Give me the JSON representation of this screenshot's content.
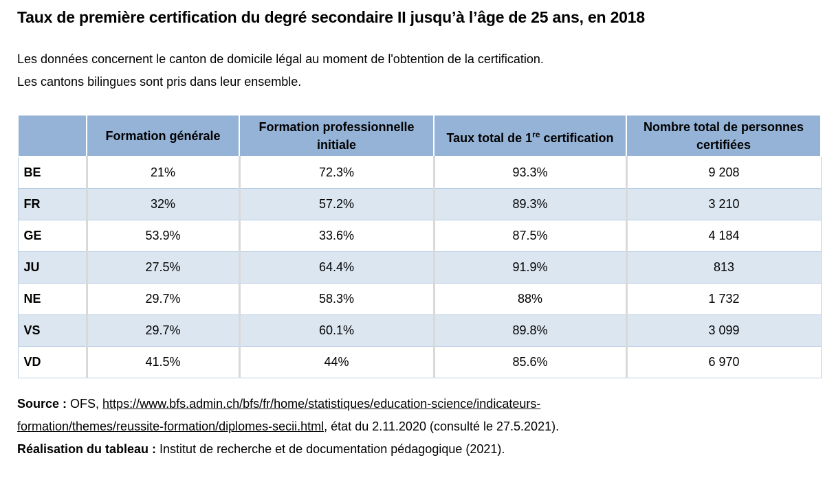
{
  "header": {
    "title": "Taux de première certification du degré secondaire II jusqu’à l’âge de 25 ans, en 2018",
    "notes": [
      "Les données concernent le canton de domicile légal au moment de l'obtention de la certification.",
      "Les cantons bilingues sont pris dans leur ensemble."
    ]
  },
  "table": {
    "columns": [
      "Formation générale",
      "Formation professionnelle initiale",
      {
        "before": "Taux total de 1",
        "sup": "re",
        "after": " certification"
      },
      "Nombre total de personnes certifiées"
    ],
    "rows": [
      [
        "BE",
        "21%",
        "72.3%",
        "93.3%",
        "9 208"
      ],
      [
        "FR",
        "32%",
        "57.2%",
        "89.3%",
        "3 210"
      ],
      [
        "GE",
        "53.9%",
        "33.6%",
        "87.5%",
        "4 184"
      ],
      [
        "JU",
        "27.5%",
        "64.4%",
        "91.9%",
        "813"
      ],
      [
        "NE",
        "29.7%",
        "58.3%",
        "88%",
        "1 732"
      ],
      [
        "VS",
        "29.7%",
        "60.1%",
        "89.8%",
        "3 099"
      ],
      [
        "VD",
        "41.5%",
        "44%",
        "85.6%",
        "6 970"
      ]
    ]
  },
  "footer": {
    "source_label": "Source :",
    "source_prefix": " OFS, ",
    "source_url": "https://www.bfs.admin.ch/bfs/fr/home/statistiques/education-science/indicateurs-formation/themes/reussite-formation/diplomes-secii.html",
    "source_suffix": ", état du 2.11.2020 (consulté le 27.5.2021).",
    "credit_label": "Réalisation du tableau :",
    "credit_text": " Institut de recherche et de documentation pédagogique (2021)."
  }
}
